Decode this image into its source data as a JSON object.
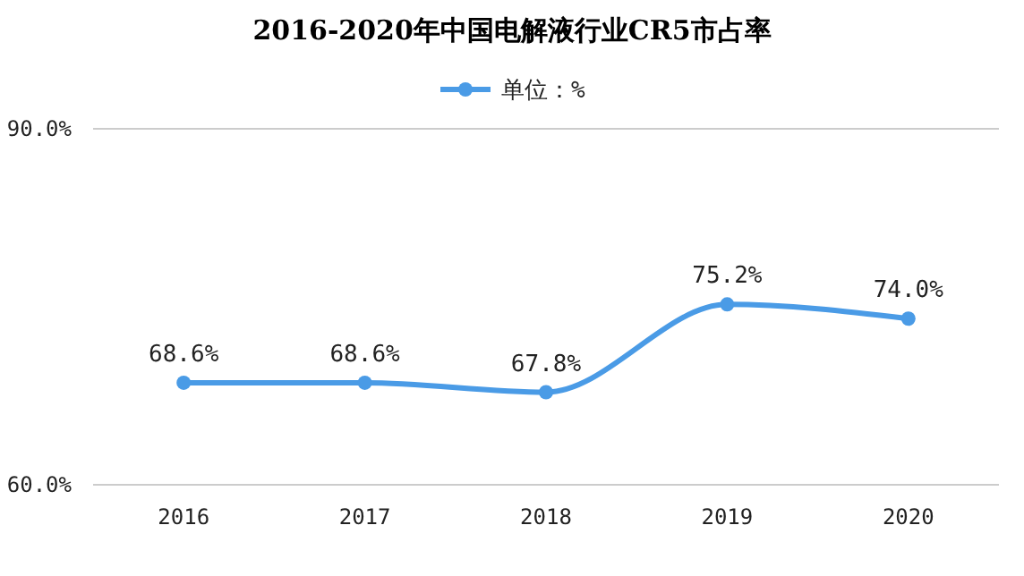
{
  "chart_data": {
    "type": "line",
    "title": "2016-2020年中国电解液行业CR5市占率",
    "categories": [
      "2016",
      "2017",
      "2018",
      "2019",
      "2020"
    ],
    "series": [
      {
        "name": "单位：%",
        "color": "#4a9be6",
        "values": [
          68.6,
          68.6,
          67.8,
          75.2,
          74.0
        ],
        "value_labels": [
          "68.6%",
          "68.6%",
          "67.8%",
          "75.2%",
          "74.0%"
        ]
      }
    ],
    "ylim": [
      60,
      90
    ],
    "yticks": [
      {
        "value": 60,
        "label": "60.0%"
      },
      {
        "value": 90,
        "label": "90.0%"
      }
    ],
    "legend": "top",
    "marker": "circle"
  }
}
